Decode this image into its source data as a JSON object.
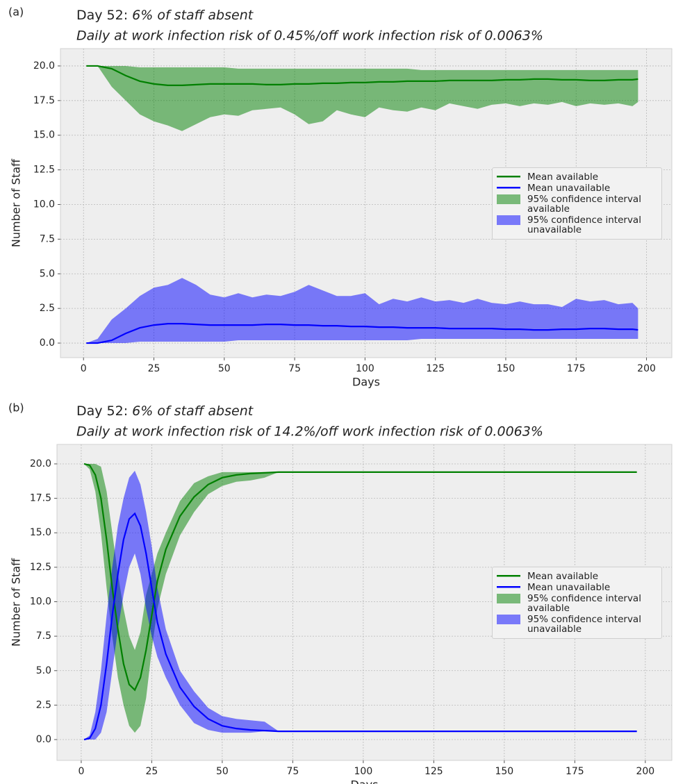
{
  "chart_data": [
    {
      "type": "line",
      "panel_label": "(a)",
      "title": "Day 52:",
      "title_italic": "6% of staff absent",
      "subtitle": "Daily at work infection risk of 0.45%/off work infection risk of 0.0063%",
      "xlabel": "Days",
      "ylabel": "Number of Staff",
      "x": [
        1,
        5,
        10,
        15,
        20,
        25,
        30,
        35,
        40,
        45,
        50,
        55,
        60,
        65,
        70,
        75,
        80,
        85,
        90,
        95,
        100,
        105,
        110,
        115,
        120,
        125,
        130,
        135,
        140,
        145,
        150,
        155,
        160,
        165,
        170,
        175,
        180,
        185,
        190,
        195,
        197
      ],
      "series": [
        {
          "name": "Mean available",
          "color": "#008000",
          "values": [
            20,
            20,
            19.8,
            19.3,
            18.9,
            18.7,
            18.6,
            18.6,
            18.65,
            18.7,
            18.7,
            18.7,
            18.7,
            18.65,
            18.65,
            18.7,
            18.7,
            18.75,
            18.75,
            18.8,
            18.8,
            18.85,
            18.85,
            18.9,
            18.9,
            18.9,
            18.95,
            18.95,
            18.95,
            18.95,
            19.0,
            19.0,
            19.05,
            19.05,
            19.0,
            19.0,
            18.95,
            18.95,
            19.0,
            19.0,
            19.05
          ]
        },
        {
          "name": "Mean unavailable",
          "color": "#0000ff",
          "values": [
            0,
            0,
            0.2,
            0.7,
            1.1,
            1.3,
            1.4,
            1.4,
            1.35,
            1.3,
            1.3,
            1.3,
            1.3,
            1.35,
            1.35,
            1.3,
            1.3,
            1.25,
            1.25,
            1.2,
            1.2,
            1.15,
            1.15,
            1.1,
            1.1,
            1.1,
            1.05,
            1.05,
            1.05,
            1.05,
            1.0,
            1.0,
            0.95,
            0.95,
            1.0,
            1.0,
            1.05,
            1.05,
            1.0,
            1.0,
            0.95
          ]
        }
      ],
      "bands": [
        {
          "name": "95% confidence interval available",
          "color": "#008000",
          "alpha": 0.5,
          "lower": [
            20,
            20,
            18.5,
            17.5,
            16.5,
            16,
            15.7,
            15.3,
            15.8,
            16.3,
            16.5,
            16.4,
            16.8,
            16.9,
            17,
            16.5,
            15.8,
            16,
            16.8,
            16.5,
            16.3,
            17,
            16.8,
            16.7,
            17,
            16.8,
            17.3,
            17.1,
            16.9,
            17.2,
            17.3,
            17.1,
            17.3,
            17.2,
            17.4,
            17.1,
            17.3,
            17.2,
            17.3,
            17.1,
            17.4
          ],
          "upper": [
            20,
            20,
            20,
            20,
            19.9,
            19.9,
            19.9,
            19.9,
            19.9,
            19.9,
            19.9,
            19.8,
            19.8,
            19.8,
            19.8,
            19.8,
            19.8,
            19.8,
            19.8,
            19.8,
            19.8,
            19.8,
            19.8,
            19.8,
            19.7,
            19.7,
            19.7,
            19.7,
            19.7,
            19.7,
            19.7,
            19.7,
            19.7,
            19.7,
            19.7,
            19.7,
            19.7,
            19.7,
            19.7,
            19.7,
            19.7
          ]
        },
        {
          "name": "95% confidence interval unavailable",
          "color": "#0000ff",
          "alpha": 0.5,
          "lower": [
            0,
            0,
            0,
            0,
            0.1,
            0.1,
            0.1,
            0.1,
            0.1,
            0.1,
            0.1,
            0.2,
            0.2,
            0.2,
            0.2,
            0.2,
            0.2,
            0.2,
            0.2,
            0.2,
            0.2,
            0.2,
            0.2,
            0.2,
            0.3,
            0.3,
            0.3,
            0.3,
            0.3,
            0.3,
            0.3,
            0.3,
            0.3,
            0.3,
            0.3,
            0.3,
            0.3,
            0.3,
            0.3,
            0.3,
            0.3
          ],
          "upper": [
            0,
            0.3,
            1.7,
            2.5,
            3.4,
            4,
            4.2,
            4.7,
            4.2,
            3.5,
            3.3,
            3.6,
            3.3,
            3.5,
            3.4,
            3.7,
            4.2,
            3.8,
            3.4,
            3.4,
            3.6,
            2.8,
            3.2,
            3,
            3.3,
            3,
            3.1,
            2.9,
            3.2,
            2.9,
            2.8,
            3,
            2.8,
            2.8,
            2.6,
            3.2,
            3,
            3.1,
            2.8,
            2.9,
            2.5
          ]
        }
      ],
      "xlim": [
        -8.2,
        209
      ],
      "ylim": [
        -1.05,
        21.25
      ],
      "xticks": [
        0,
        25,
        50,
        75,
        100,
        125,
        150,
        175,
        200
      ],
      "yticks": [
        {
          "value": 0,
          "label": "0.0"
        },
        2.5,
        {
          "value": 5,
          "label": "5.0"
        },
        7.5,
        {
          "value": 10,
          "label": "10.0"
        },
        12.5,
        {
          "value": 15,
          "label": "15.0"
        },
        17.5,
        {
          "value": 20,
          "label": "20.0"
        }
      ],
      "grid": true,
      "legend": "center right"
    },
    {
      "type": "line",
      "panel_label": "(b)",
      "title": "Day 52:",
      "title_italic": "6% of staff absent",
      "subtitle": "Daily at work infection risk of 14.2%/off work infection risk of 0.0063%",
      "xlabel": "Days",
      "ylabel": "Number of Staff",
      "x": [
        1,
        3,
        5,
        7,
        9,
        11,
        13,
        15,
        17,
        19,
        21,
        23,
        25,
        27,
        30,
        35,
        40,
        45,
        50,
        55,
        60,
        65,
        70,
        75,
        80,
        100,
        150,
        197
      ],
      "series": [
        {
          "name": "Mean available",
          "color": "#008000",
          "values": [
            20,
            19.9,
            19.2,
            17.5,
            14.5,
            11,
            8,
            5.5,
            4,
            3.6,
            4.5,
            6.5,
            9,
            11.5,
            13.8,
            16.2,
            17.6,
            18.5,
            19,
            19.2,
            19.3,
            19.35,
            19.4,
            19.4,
            19.4,
            19.4,
            19.4,
            19.4
          ]
        },
        {
          "name": "Mean unavailable",
          "color": "#0000ff",
          "values": [
            0,
            0.1,
            0.8,
            2.5,
            5.5,
            9,
            12,
            14.5,
            16,
            16.4,
            15.5,
            13.5,
            11,
            8.5,
            6.2,
            3.8,
            2.4,
            1.5,
            1,
            0.8,
            0.7,
            0.65,
            0.6,
            0.6,
            0.6,
            0.6,
            0.6,
            0.6
          ]
        }
      ],
      "bands": [
        {
          "name": "95% confidence interval available",
          "color": "#008000",
          "alpha": 0.5,
          "lower": [
            20,
            19.6,
            18,
            15,
            11,
            7.5,
            4.5,
            2.5,
            1,
            0.5,
            1,
            3,
            6.5,
            9.5,
            12,
            14.8,
            16.5,
            17.8,
            18.4,
            18.7,
            18.8,
            19,
            19.4,
            19.4,
            19.4,
            19.4,
            19.4,
            19.4
          ],
          "upper": [
            20,
            20,
            20,
            19.8,
            18,
            15,
            12,
            9.5,
            7.5,
            6.5,
            7.8,
            10.5,
            12,
            13.5,
            15,
            17.3,
            18.6,
            19.1,
            19.4,
            19.4,
            19.4,
            19.4,
            19.4,
            19.4,
            19.4,
            19.4,
            19.4,
            19.4
          ]
        },
        {
          "name": "95% confidence interval unavailable",
          "color": "#0000ff",
          "alpha": 0.5,
          "lower": [
            0,
            0,
            0,
            0.5,
            2,
            5,
            8,
            10.5,
            12.5,
            13.5,
            12,
            9.5,
            7.5,
            6,
            4.5,
            2.5,
            1.2,
            0.7,
            0.5,
            0.5,
            0.5,
            0.6,
            0.6,
            0.6,
            0.6,
            0.6,
            0.6,
            0.6
          ],
          "upper": [
            0,
            0.3,
            2,
            5,
            9,
            12.5,
            15.5,
            17.5,
            19,
            19.5,
            18.5,
            16.5,
            14,
            11,
            8,
            5,
            3.5,
            2.3,
            1.7,
            1.5,
            1.4,
            1.3,
            0.6,
            0.6,
            0.6,
            0.6,
            0.6,
            0.6
          ]
        }
      ],
      "xlim": [
        -8.6,
        209.4
      ],
      "ylim": [
        -1.51,
        21.41
      ],
      "xticks": [
        0,
        25,
        50,
        75,
        100,
        125,
        150,
        175,
        200
      ],
      "yticks": [
        {
          "value": 0,
          "label": "0.0"
        },
        2.5,
        {
          "value": 5,
          "label": "5.0"
        },
        7.5,
        {
          "value": 10,
          "label": "10.0"
        },
        12.5,
        {
          "value": 15,
          "label": "15.0"
        },
        17.5,
        {
          "value": 20,
          "label": "20.0"
        }
      ],
      "grid": true,
      "legend": "center right"
    }
  ]
}
